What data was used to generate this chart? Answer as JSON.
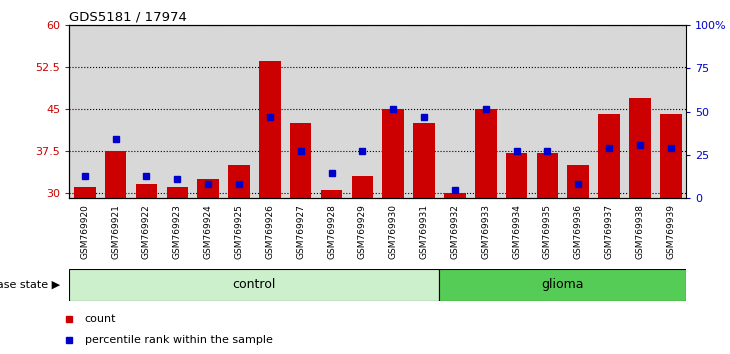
{
  "title": "GDS5181 / 17974",
  "samples": [
    "GSM769920",
    "GSM769921",
    "GSM769922",
    "GSM769923",
    "GSM769924",
    "GSM769925",
    "GSM769926",
    "GSM769927",
    "GSM769928",
    "GSM769929",
    "GSM769930",
    "GSM769931",
    "GSM769932",
    "GSM769933",
    "GSM769934",
    "GSM769935",
    "GSM769936",
    "GSM769937",
    "GSM769938",
    "GSM769939"
  ],
  "red_values": [
    31.0,
    37.5,
    31.5,
    31.0,
    32.5,
    35.0,
    53.5,
    42.5,
    30.5,
    33.0,
    45.0,
    42.5,
    30.0,
    45.0,
    37.0,
    37.0,
    35.0,
    44.0,
    47.0,
    44.0
  ],
  "blue_values": [
    33.0,
    39.5,
    33.0,
    32.5,
    31.5,
    31.5,
    43.5,
    37.5,
    33.5,
    37.5,
    45.0,
    43.5,
    30.5,
    45.0,
    37.5,
    37.5,
    31.5,
    38.0,
    38.5,
    38.0
  ],
  "control_count": 12,
  "glioma_count": 8,
  "ymin": 29,
  "ymax": 60,
  "yticks_left": [
    30,
    37.5,
    45,
    52.5,
    60
  ],
  "yticks_right": [
    0,
    25,
    50,
    75,
    100
  ],
  "bar_color": "#cc0000",
  "dot_color": "#0000cc",
  "control_color": "#ccf0cc",
  "glioma_color": "#55cc55",
  "col_bg_color": "#d8d8d8",
  "legend_count": "count",
  "legend_pct": "percentile rank within the sample"
}
